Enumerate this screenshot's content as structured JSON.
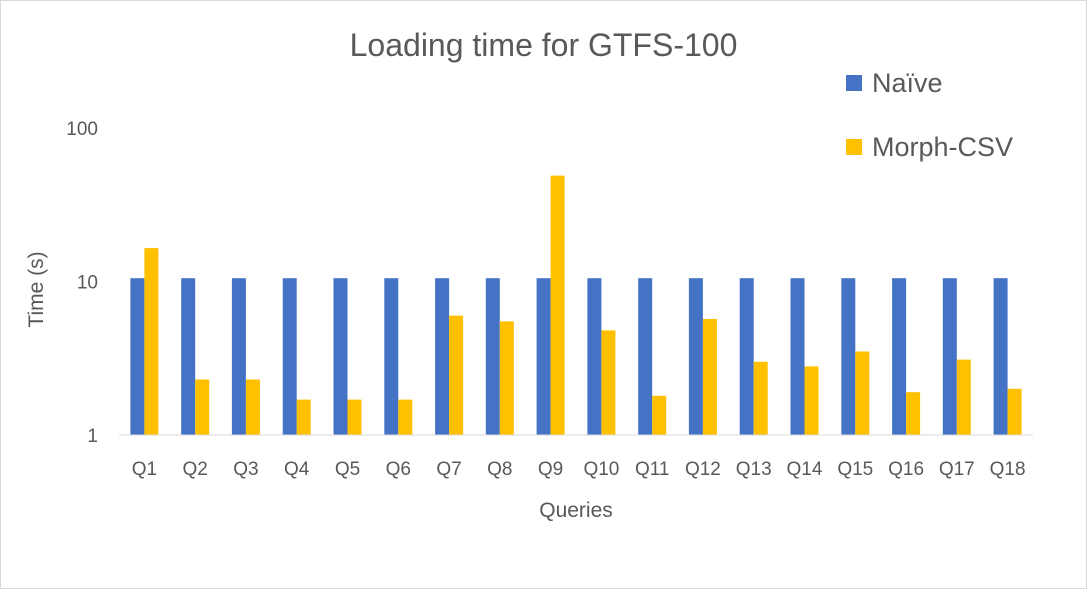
{
  "chart_data": {
    "type": "bar",
    "title": "Loading time for GTFS-100",
    "xlabel": "Queries",
    "ylabel": "Time (s)",
    "yscale": "log",
    "ylim": [
      1,
      100
    ],
    "yticks": [
      "1",
      "10",
      "100"
    ],
    "grid": false,
    "legend_position": "top-right",
    "categories": [
      "Q1",
      "Q2",
      "Q3",
      "Q4",
      "Q5",
      "Q6",
      "Q7",
      "Q8",
      "Q9",
      "Q10",
      "Q11",
      "Q12",
      "Q13",
      "Q14",
      "Q15",
      "Q16",
      "Q17",
      "Q18"
    ],
    "series": [
      {
        "name": "Naïve",
        "color": "#4472C4",
        "values": [
          10.5,
          10.5,
          10.5,
          10.5,
          10.5,
          10.5,
          10.5,
          10.5,
          10.5,
          10.5,
          10.5,
          10.5,
          10.5,
          10.5,
          10.5,
          10.5,
          10.5,
          10.5
        ]
      },
      {
        "name": "Morph-CSV",
        "color": "#FFC000",
        "values": [
          16.5,
          2.3,
          2.3,
          1.7,
          1.7,
          1.7,
          6,
          5.5,
          49,
          4.8,
          1.8,
          5.7,
          3,
          2.8,
          3.5,
          1.9,
          3.1,
          2
        ]
      }
    ]
  }
}
